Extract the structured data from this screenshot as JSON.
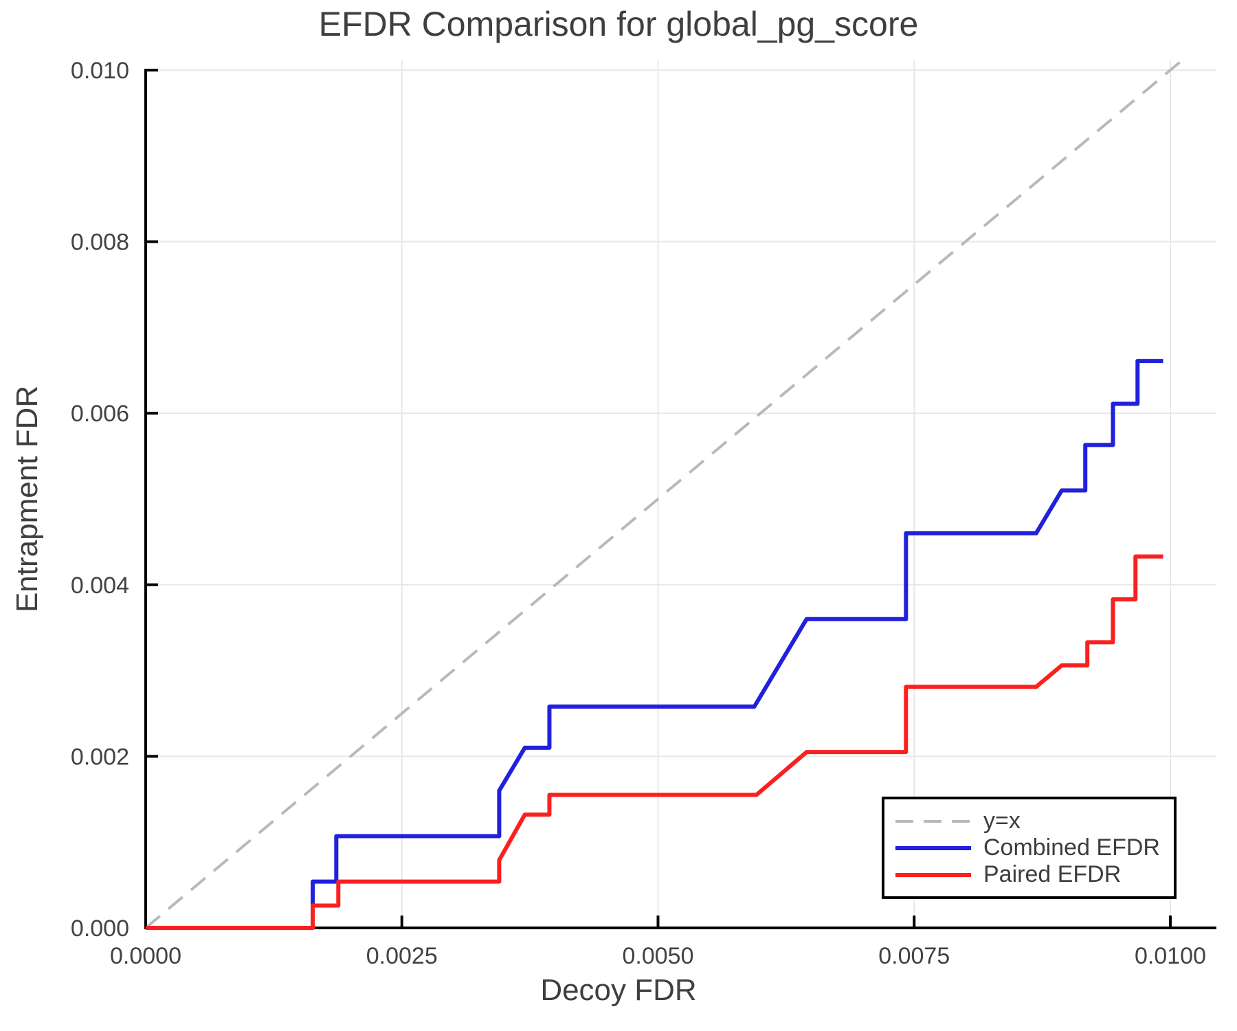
{
  "chart_data": {
    "type": "line",
    "title": "EFDR Comparison for global_pg_score",
    "xlabel": "Decoy FDR",
    "ylabel": "Entrapment FDR",
    "xlim": [
      0,
      0.01045
    ],
    "ylim": [
      0,
      0.0101
    ],
    "grid": true,
    "x_ticks": [
      0,
      0.0025,
      0.005,
      0.0075,
      0.01
    ],
    "x_tick_labels": [
      "0.0000",
      "0.0025",
      "0.0050",
      "0.0075",
      "0.0100"
    ],
    "y_ticks": [
      0,
      0.002,
      0.004,
      0.006,
      0.008,
      0.01
    ],
    "y_tick_labels": [
      "0.000",
      "0.002",
      "0.004",
      "0.006",
      "0.008",
      "0.010"
    ],
    "legend": {
      "position": "lower right"
    },
    "style": {
      "grid_color": "#e8e8e8",
      "spine_color": "#000000",
      "text_color": "#424242"
    },
    "series": [
      {
        "name": "y=x",
        "color": "#b9b9b9",
        "style": "dashed",
        "points": [
          [
            0,
            0
          ],
          [
            0.0101,
            0.0101
          ]
        ]
      },
      {
        "name": "Combined EFDR",
        "color": "#2020dd",
        "style": "solid",
        "points": [
          [
            0.0,
            0.0
          ],
          [
            0.00163,
            0.0
          ],
          [
            0.00163,
            0.00054
          ],
          [
            0.00186,
            0.00054
          ],
          [
            0.00186,
            0.00107
          ],
          [
            0.00345,
            0.00107
          ],
          [
            0.00345,
            0.0016
          ],
          [
            0.0037,
            0.0021
          ],
          [
            0.00394,
            0.0021
          ],
          [
            0.00394,
            0.00258
          ],
          [
            0.00594,
            0.00258
          ],
          [
            0.00645,
            0.0036
          ],
          [
            0.00742,
            0.0036
          ],
          [
            0.00742,
            0.0046
          ],
          [
            0.00869,
            0.0046
          ],
          [
            0.00894,
            0.0051
          ],
          [
            0.00917,
            0.0051
          ],
          [
            0.00917,
            0.00563
          ],
          [
            0.00944,
            0.00563
          ],
          [
            0.00944,
            0.00611
          ],
          [
            0.00968,
            0.00611
          ],
          [
            0.00968,
            0.00661
          ],
          [
            0.00993,
            0.00661
          ]
        ]
      },
      {
        "name": "Paired EFDR",
        "color": "#fb2020",
        "style": "solid",
        "points": [
          [
            0.0,
            0.0
          ],
          [
            0.00163,
            0.0
          ],
          [
            0.00163,
            0.00026
          ],
          [
            0.00188,
            0.00026
          ],
          [
            0.00188,
            0.00054
          ],
          [
            0.00345,
            0.00054
          ],
          [
            0.00345,
            0.00079
          ],
          [
            0.0037,
            0.00132
          ],
          [
            0.00394,
            0.00132
          ],
          [
            0.00394,
            0.00155
          ],
          [
            0.00596,
            0.00155
          ],
          [
            0.00645,
            0.00205
          ],
          [
            0.00742,
            0.00205
          ],
          [
            0.00742,
            0.00281
          ],
          [
            0.00869,
            0.00281
          ],
          [
            0.00894,
            0.00306
          ],
          [
            0.00919,
            0.00306
          ],
          [
            0.00919,
            0.00333
          ],
          [
            0.00944,
            0.00333
          ],
          [
            0.00944,
            0.00383
          ],
          [
            0.00966,
            0.00383
          ],
          [
            0.00966,
            0.00433
          ],
          [
            0.00993,
            0.00433
          ]
        ]
      }
    ]
  }
}
